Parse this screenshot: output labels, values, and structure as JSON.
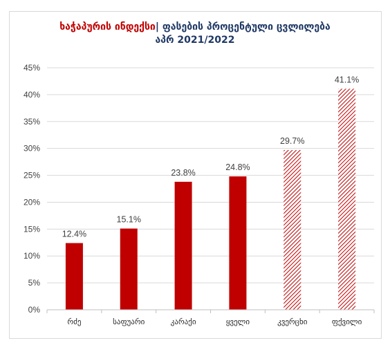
{
  "title": {
    "part1": "ხაჭაპურის ინდექსი",
    "separator": "|",
    "part2": "ფასების პროცენტული ცვლილება",
    "line2": "აპრ 2021/2022"
  },
  "colors": {
    "solid": "#c00000",
    "hatch": "#c00000",
    "grid": "#d9d9d9",
    "title_accent": "#c00000",
    "title_main": "#1f3864"
  },
  "chart_data": {
    "type": "bar",
    "categories": [
      "რძე",
      "საფუარი",
      "კარაქი",
      "ყველი",
      "კვერცხი",
      "ფქვილი"
    ],
    "values": [
      12.4,
      15.1,
      23.8,
      24.8,
      29.7,
      41.1
    ],
    "data_labels": [
      "12.4%",
      "15.1%",
      "23.8%",
      "24.8%",
      "29.7%",
      "41.1%"
    ],
    "bar_style": [
      "solid",
      "solid",
      "solid",
      "solid",
      "hatched",
      "hatched"
    ],
    "ylim": [
      0,
      45
    ],
    "yticks": [
      0,
      5,
      10,
      15,
      20,
      25,
      30,
      35,
      40,
      45
    ],
    "ytick_labels": [
      "0%",
      "5%",
      "10%",
      "15%",
      "20%",
      "25%",
      "30%",
      "35%",
      "40%",
      "45%"
    ],
    "grid": true,
    "legend": false
  }
}
